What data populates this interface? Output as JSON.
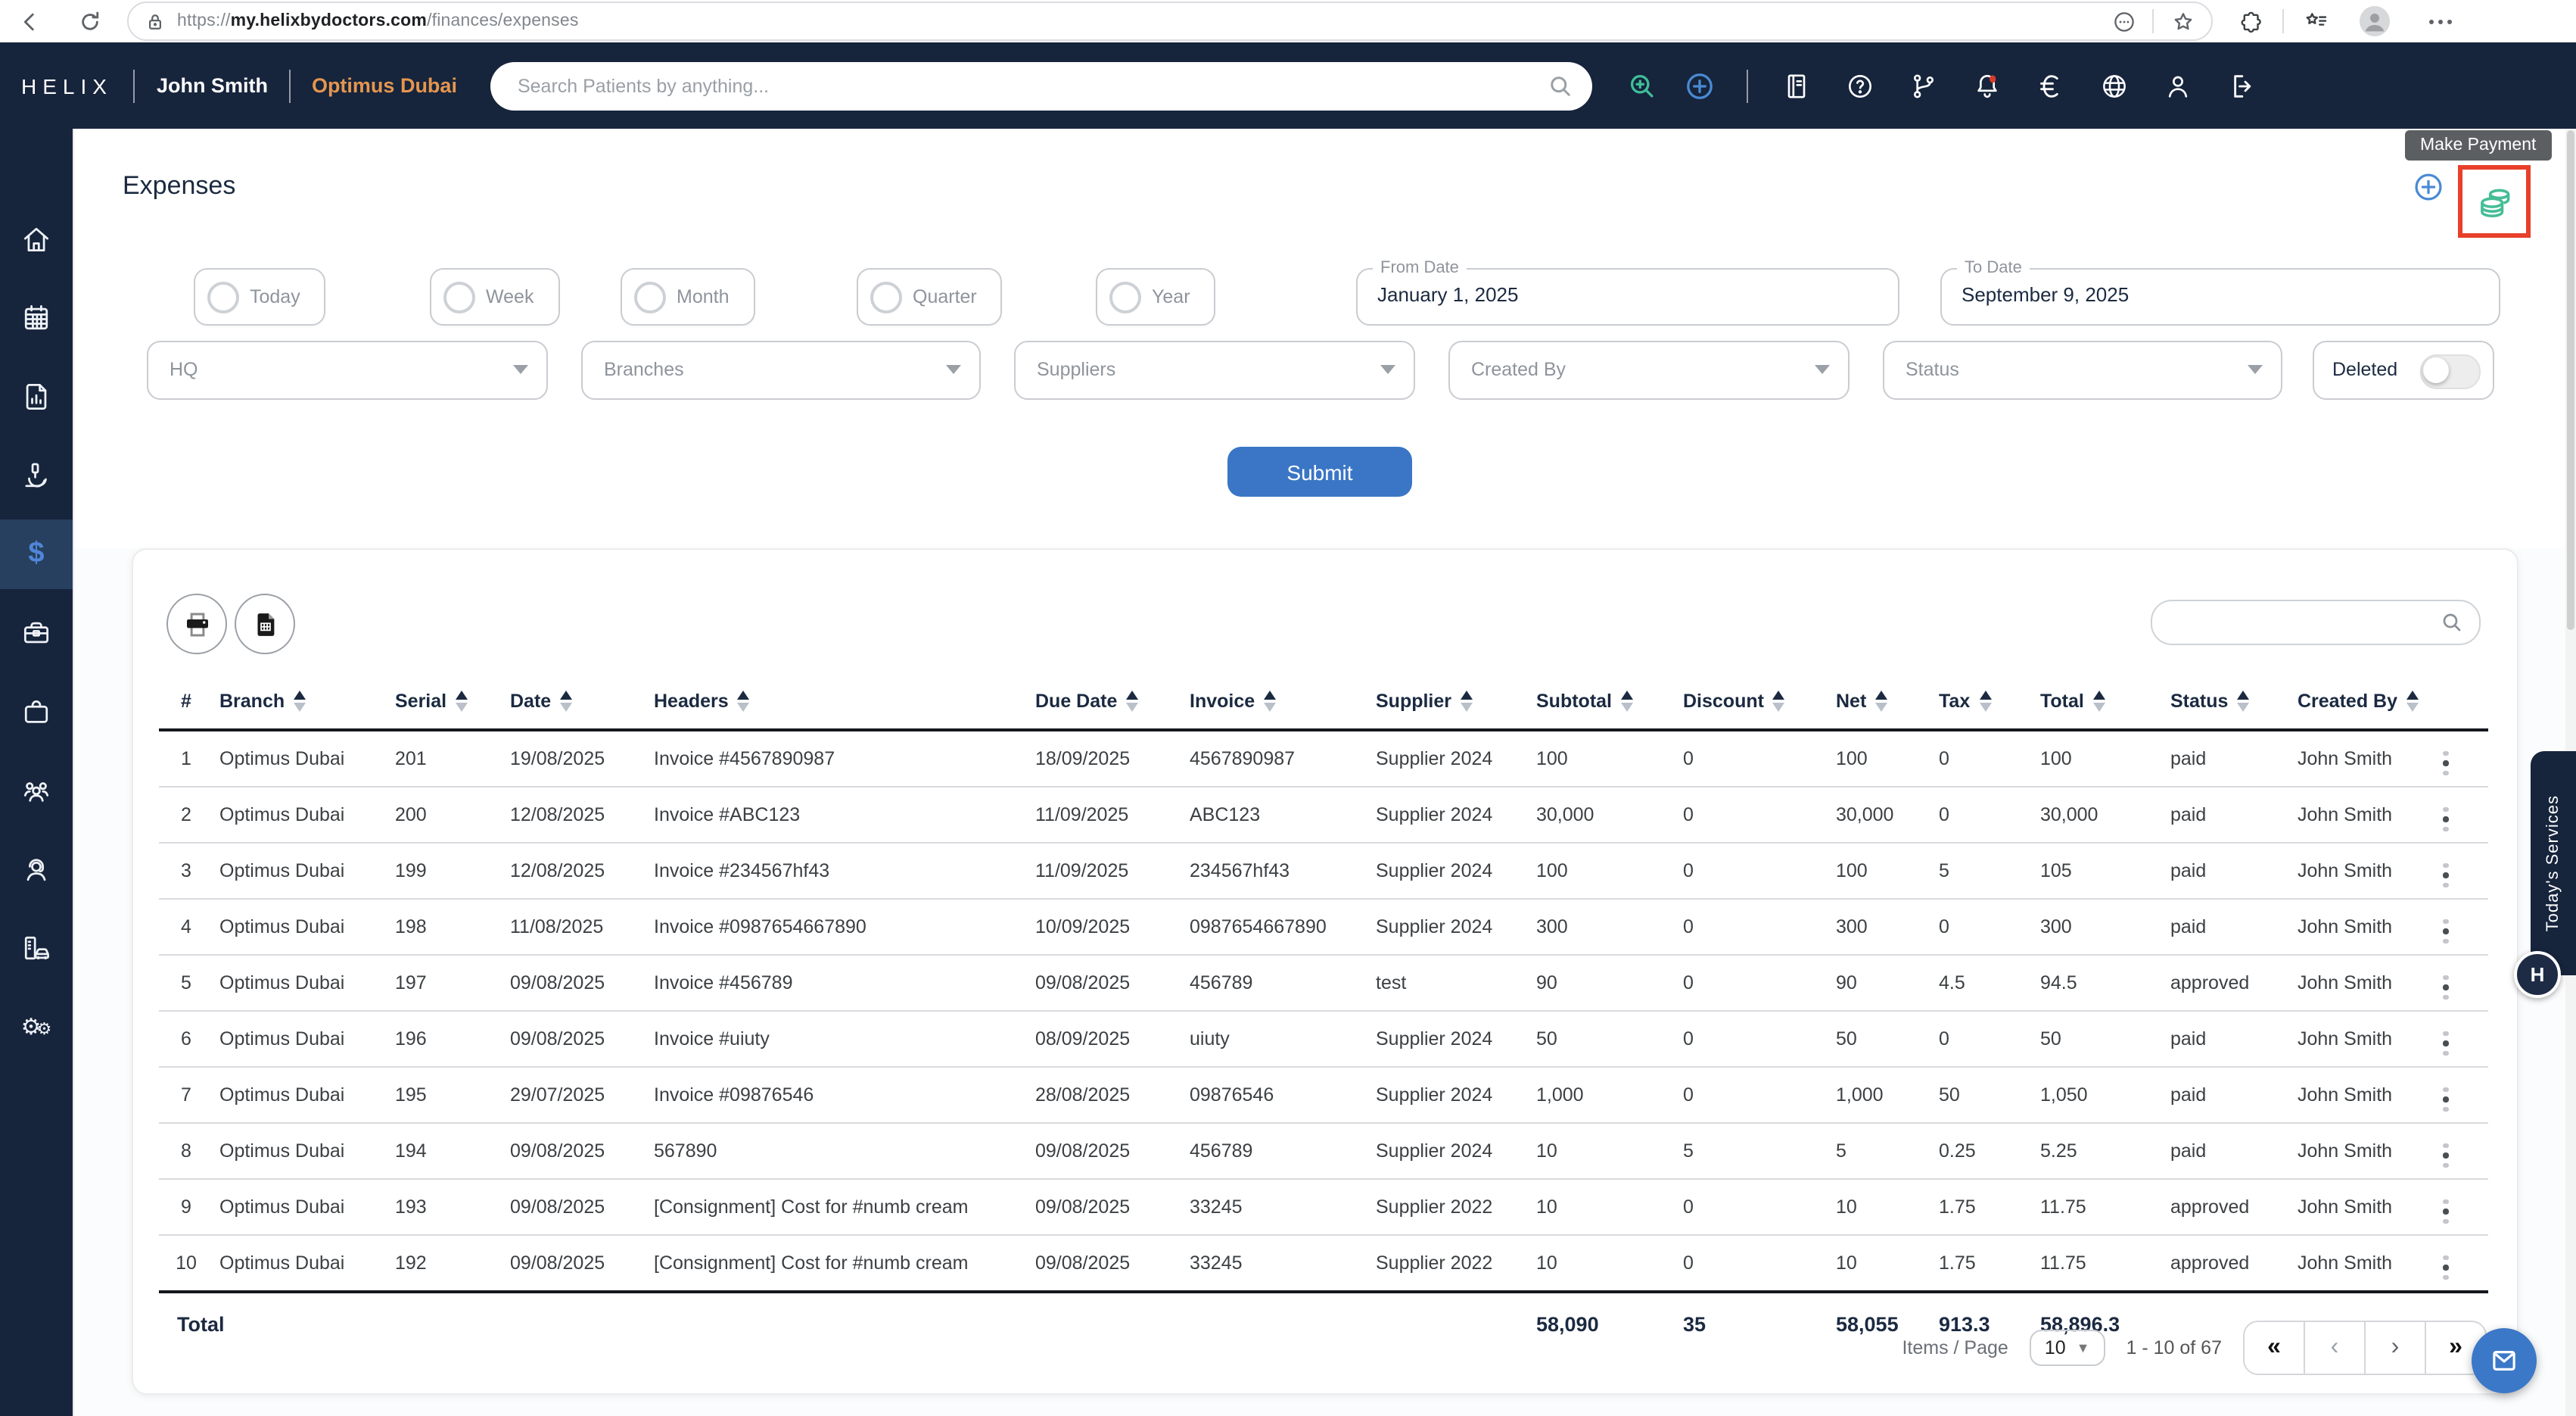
{
  "browser": {
    "url": {
      "scheme": "https://",
      "host": "my.helixbydoctors.com",
      "path": "/finances/expenses"
    },
    "icons": [
      "back-icon",
      "reload-icon",
      "lock-icon",
      "ellipsis-circle-icon",
      "bookmark-star-icon",
      "extensions-puzzle-icon",
      "favorites-list-icon",
      "profile-avatar",
      "more-dots-icon",
      "copilot-icon"
    ]
  },
  "header": {
    "brand": "HELIX",
    "user": "John Smith",
    "clinic": "Optimus Dubai",
    "search_placeholder": "Search Patients by anything...",
    "icons": [
      "search-icon",
      "zoom-plus-icon",
      "add-circle-icon",
      "library-icon",
      "help-icon",
      "branch-icon",
      "notifications-icon",
      "euro-icon",
      "globe-icon",
      "user-icon",
      "logout-icon"
    ],
    "colors": {
      "bg": "#16243c",
      "clinic_accent": "#e5964e"
    }
  },
  "sidebar": {
    "items": [
      "home",
      "calendar",
      "reports",
      "lab",
      "finances",
      "inventory",
      "services",
      "staff",
      "support",
      "assets",
      "settings"
    ],
    "active_item": "finances"
  },
  "page": {
    "title": "Expenses",
    "tooltip": "Make Payment",
    "highlight_color": "#e8402a",
    "coins_icon_color": "#45bd96"
  },
  "filters": {
    "quick_ranges": [
      "Today",
      "Week",
      "Month",
      "Quarter",
      "Year"
    ],
    "from_date": {
      "label": "From Date",
      "value": "January 1, 2025"
    },
    "to_date": {
      "label": "To Date",
      "value": "September 9, 2025"
    },
    "dropdowns": [
      "HQ",
      "Branches",
      "Suppliers",
      "Created By",
      "Status"
    ],
    "deleted_label": "Deleted",
    "deleted_on": false,
    "submit_label": "Submit",
    "submit_color": "#3a76c5"
  },
  "table": {
    "headers": [
      {
        "label": "#",
        "sortable": false
      },
      {
        "label": "Branch",
        "sortable": true
      },
      {
        "label": "Serial",
        "sortable": true
      },
      {
        "label": "Date",
        "sortable": true
      },
      {
        "label": "Headers",
        "sortable": true
      },
      {
        "label": "Due Date",
        "sortable": true
      },
      {
        "label": "Invoice",
        "sortable": true
      },
      {
        "label": "Supplier",
        "sortable": true
      },
      {
        "label": "Subtotal",
        "sortable": true
      },
      {
        "label": "Discount",
        "sortable": true
      },
      {
        "label": "Net",
        "sortable": true
      },
      {
        "label": "Tax",
        "sortable": true
      },
      {
        "label": "Total",
        "sortable": true
      },
      {
        "label": "Status",
        "sortable": true
      },
      {
        "label": "Created By",
        "sortable": true
      }
    ],
    "rows": [
      [
        "1",
        "Optimus Dubai",
        "201",
        "19/08/2025",
        "Invoice #4567890987",
        "18/09/2025",
        "4567890987",
        "Supplier 2024",
        "100",
        "0",
        "100",
        "0",
        "100",
        "paid",
        "John Smith"
      ],
      [
        "2",
        "Optimus Dubai",
        "200",
        "12/08/2025",
        "Invoice #ABC123",
        "11/09/2025",
        "ABC123",
        "Supplier 2024",
        "30,000",
        "0",
        "30,000",
        "0",
        "30,000",
        "paid",
        "John Smith"
      ],
      [
        "3",
        "Optimus Dubai",
        "199",
        "12/08/2025",
        "Invoice #234567hf43",
        "11/09/2025",
        "234567hf43",
        "Supplier 2024",
        "100",
        "0",
        "100",
        "5",
        "105",
        "paid",
        "John Smith"
      ],
      [
        "4",
        "Optimus Dubai",
        "198",
        "11/08/2025",
        "Invoice #0987654667890",
        "10/09/2025",
        "0987654667890",
        "Supplier 2024",
        "300",
        "0",
        "300",
        "0",
        "300",
        "paid",
        "John Smith"
      ],
      [
        "5",
        "Optimus Dubai",
        "197",
        "09/08/2025",
        "Invoice #456789",
        "09/08/2025",
        "456789",
        "test",
        "90",
        "0",
        "90",
        "4.5",
        "94.5",
        "approved",
        "John Smith"
      ],
      [
        "6",
        "Optimus Dubai",
        "196",
        "09/08/2025",
        "Invoice #uiuty",
        "08/09/2025",
        "uiuty",
        "Supplier 2024",
        "50",
        "0",
        "50",
        "0",
        "50",
        "paid",
        "John Smith"
      ],
      [
        "7",
        "Optimus Dubai",
        "195",
        "29/07/2025",
        "Invoice #09876546",
        "28/08/2025",
        "09876546",
        "Supplier 2024",
        "1,000",
        "0",
        "1,000",
        "50",
        "1,050",
        "paid",
        "John Smith"
      ],
      [
        "8",
        "Optimus Dubai",
        "194",
        "09/08/2025",
        "567890",
        "09/08/2025",
        "456789",
        "Supplier 2024",
        "10",
        "5",
        "5",
        "0.25",
        "5.25",
        "paid",
        "John Smith"
      ],
      [
        "9",
        "Optimus Dubai",
        "193",
        "09/08/2025",
        "[Consignment] Cost for #numb cream",
        "09/08/2025",
        "33245",
        "Supplier 2022",
        "10",
        "0",
        "10",
        "1.75",
        "11.75",
        "approved",
        "John Smith"
      ],
      [
        "10",
        "Optimus Dubai",
        "192",
        "09/08/2025",
        "[Consignment] Cost for #numb cream",
        "09/08/2025",
        "33245",
        "Supplier 2022",
        "10",
        "0",
        "10",
        "1.75",
        "11.75",
        "approved",
        "John Smith"
      ]
    ],
    "total": {
      "label": "Total",
      "subtotal": "58,090",
      "discount": "35",
      "net": "58,055",
      "tax": "913.3",
      "total": "58,896.3"
    }
  },
  "pagination": {
    "items_per_page_label": "Items / Page",
    "page_size": "10",
    "range": "1 - 10 of 67",
    "buttons": [
      "«",
      "‹",
      "›",
      "»"
    ]
  },
  "side_tab": {
    "label": "Today's Services",
    "logo_letter": "H"
  }
}
